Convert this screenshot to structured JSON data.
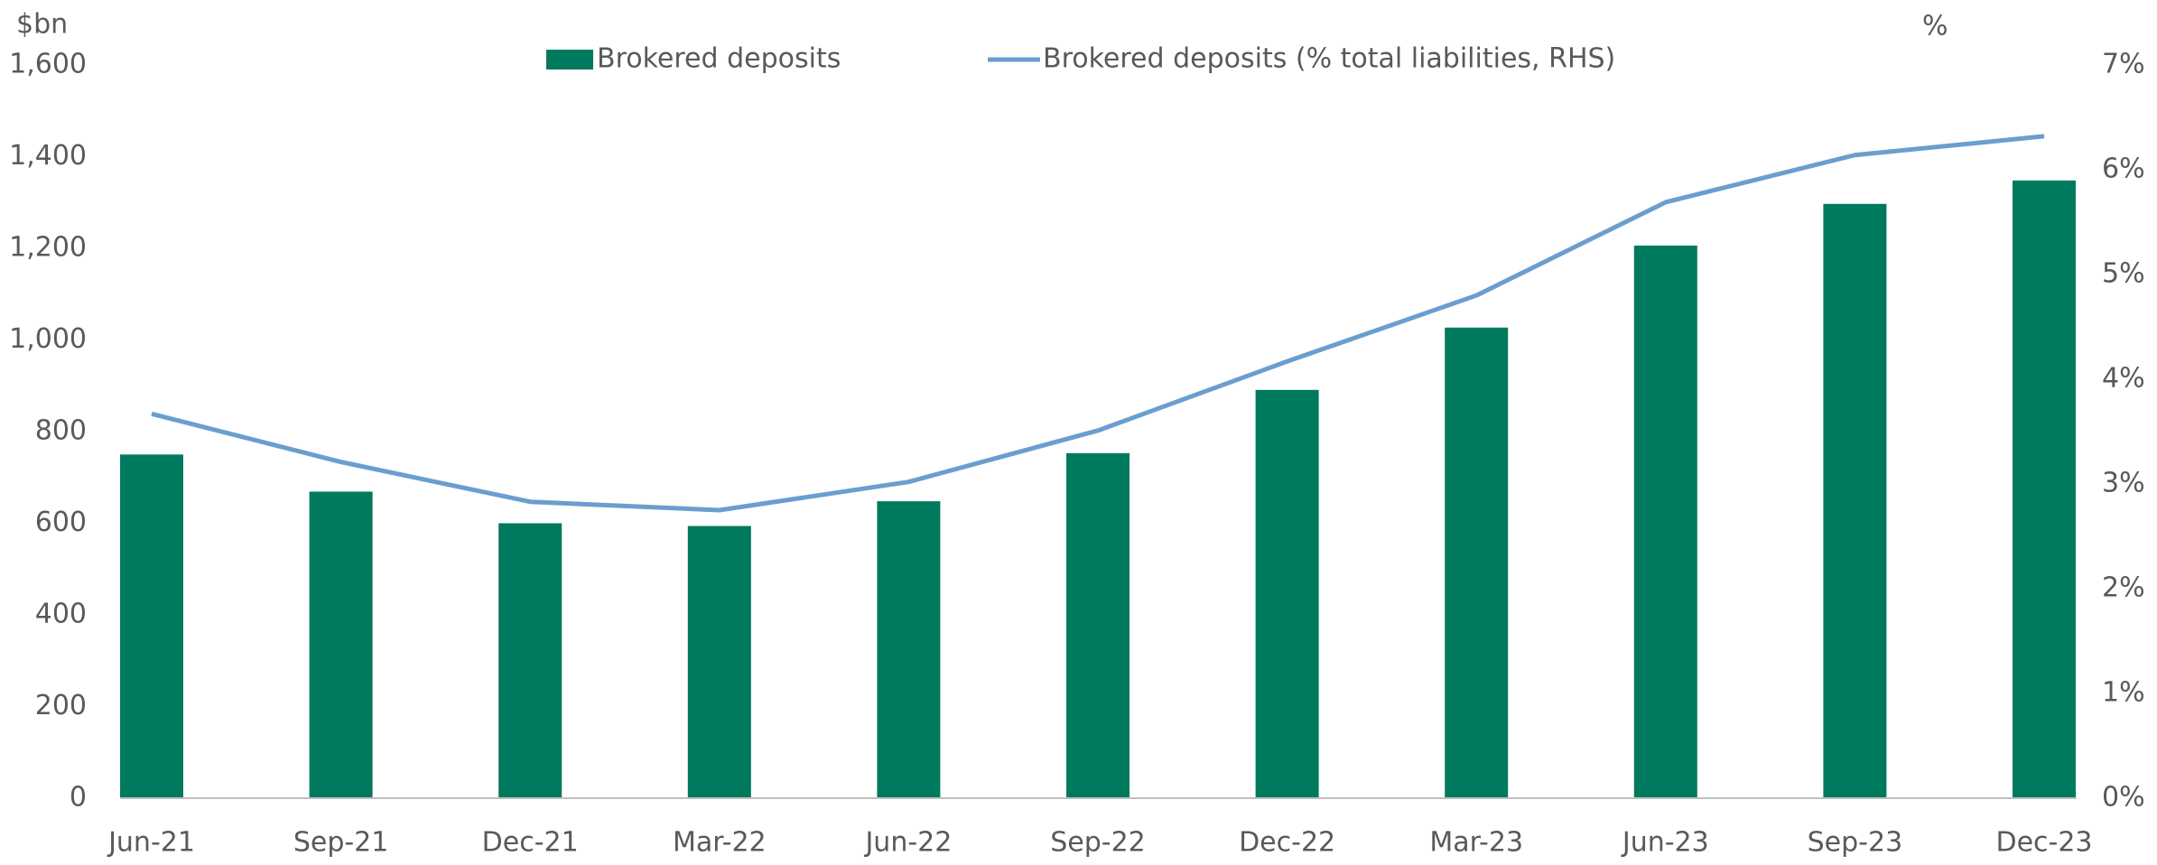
{
  "chart_data": {
    "type": "bar",
    "y_label": "$bn",
    "y2_label": "%",
    "categories": [
      "Jun-21",
      "Sep-21",
      "Dec-21",
      "Mar-22",
      "Jun-22",
      "Sep-22",
      "Dec-22",
      "Mar-23",
      "Jun-23",
      "Sep-23",
      "Dec-23"
    ],
    "series": [
      {
        "name": "Brokered deposits",
        "type": "bar",
        "color": "#007a5e",
        "values": [
          750,
          669,
          600,
          594,
          648,
          753,
          891,
          1027,
          1206,
          1297,
          1348
        ]
      },
      {
        "name": "Brokered deposits (% total liabilities, RHS)",
        "type": "line",
        "axis": "y2",
        "color": "#6a9ecf",
        "values": [
          3.67,
          3.21,
          2.83,
          2.75,
          3.02,
          3.51,
          4.17,
          4.8,
          5.69,
          6.14,
          6.32
        ]
      }
    ],
    "ylim": [
      0,
      1600
    ],
    "yticks": [
      0,
      200,
      400,
      600,
      800,
      {
        "value": 1000,
        "label": "1,000"
      },
      {
        "value": 1200,
        "label": "1,200"
      },
      {
        "value": 1400,
        "label": "1,400"
      },
      {
        "value": 1600,
        "label": "1,600"
      }
    ],
    "y2lim": [
      0,
      7
    ],
    "y2ticks": [
      {
        "value": 0,
        "label": "0%"
      },
      {
        "value": 1,
        "label": "1%"
      },
      {
        "value": 2,
        "label": "2%"
      },
      {
        "value": 3,
        "label": "3%"
      },
      {
        "value": 4,
        "label": "4%"
      },
      {
        "value": 5,
        "label": "5%"
      },
      {
        "value": 6,
        "label": "6%"
      },
      {
        "value": 7,
        "label": "7%"
      }
    ],
    "grid": false
  }
}
